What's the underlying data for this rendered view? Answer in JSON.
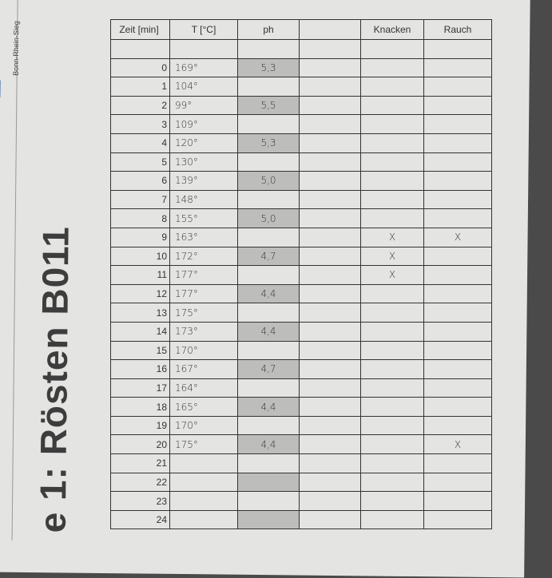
{
  "header": {
    "logo_text": "Bonn-Rhein-Sieg",
    "title": "e 1: Rösten  B011"
  },
  "table": {
    "columns": [
      "Zeit [min]",
      "T [°C]",
      "ph",
      "",
      "Knacken",
      "Rauch"
    ],
    "rows": [
      {
        "zeit": "0",
        "t": "169°",
        "ph": "5,3",
        "knacken": "",
        "rauch": ""
      },
      {
        "zeit": "1",
        "t": "104°",
        "ph": "",
        "knacken": "",
        "rauch": ""
      },
      {
        "zeit": "2",
        "t": "99°",
        "ph": "5,5",
        "knacken": "",
        "rauch": ""
      },
      {
        "zeit": "3",
        "t": "109°",
        "ph": "",
        "knacken": "",
        "rauch": ""
      },
      {
        "zeit": "4",
        "t": "120°",
        "ph": "5,3",
        "knacken": "",
        "rauch": ""
      },
      {
        "zeit": "5",
        "t": "130°",
        "ph": "",
        "knacken": "",
        "rauch": ""
      },
      {
        "zeit": "6",
        "t": "139°",
        "ph": "5,0",
        "knacken": "",
        "rauch": ""
      },
      {
        "zeit": "7",
        "t": "148°",
        "ph": "",
        "knacken": "",
        "rauch": ""
      },
      {
        "zeit": "8",
        "t": "155°",
        "ph": "5,0",
        "knacken": "",
        "rauch": ""
      },
      {
        "zeit": "9",
        "t": "163°",
        "ph": "",
        "knacken": "X",
        "rauch": "X"
      },
      {
        "zeit": "10",
        "t": "172°",
        "ph": "4,7",
        "knacken": "X",
        "rauch": ""
      },
      {
        "zeit": "11",
        "t": "177°",
        "ph": "",
        "knacken": "X",
        "rauch": ""
      },
      {
        "zeit": "12",
        "t": "177°",
        "ph": "4,4",
        "knacken": "",
        "rauch": ""
      },
      {
        "zeit": "13",
        "t": "175°",
        "ph": "",
        "knacken": "",
        "rauch": ""
      },
      {
        "zeit": "14",
        "t": "173°",
        "ph": "4,4",
        "knacken": "",
        "rauch": ""
      },
      {
        "zeit": "15",
        "t": "170°",
        "ph": "",
        "knacken": "",
        "rauch": ""
      },
      {
        "zeit": "16",
        "t": "167°",
        "ph": "4,7",
        "knacken": "",
        "rauch": ""
      },
      {
        "zeit": "17",
        "t": "164°",
        "ph": "",
        "knacken": "",
        "rauch": ""
      },
      {
        "zeit": "18",
        "t": "165°",
        "ph": "4,4",
        "knacken": "",
        "rauch": ""
      },
      {
        "zeit": "19",
        "t": "170°",
        "ph": "",
        "knacken": "",
        "rauch": ""
      },
      {
        "zeit": "20",
        "t": "175°",
        "ph": "4,4",
        "knacken": "",
        "rauch": "X"
      },
      {
        "zeit": "21",
        "t": "",
        "ph": "",
        "knacken": "",
        "rauch": ""
      },
      {
        "zeit": "22",
        "t": "",
        "ph": "",
        "knacken": "",
        "rauch": ""
      },
      {
        "zeit": "23",
        "t": "",
        "ph": "",
        "knacken": "",
        "rauch": ""
      },
      {
        "zeit": "24",
        "t": "",
        "ph": "",
        "knacken": "",
        "rauch": ""
      }
    ]
  }
}
